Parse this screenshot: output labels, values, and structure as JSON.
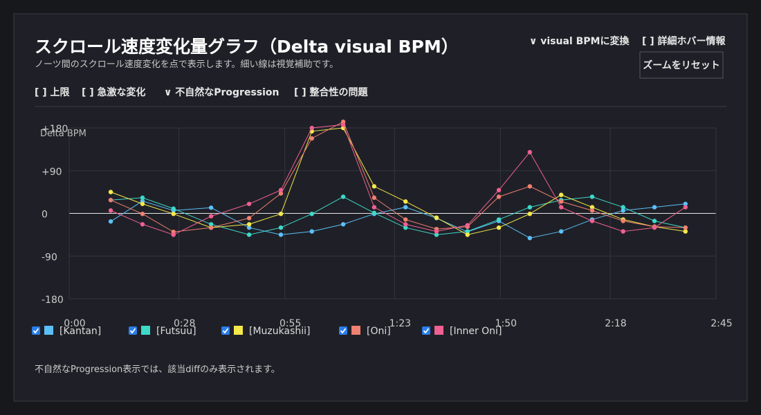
{
  "header": {
    "title": "スクロール速度変化量グラフ（Delta visual BPM）",
    "subtitle": "ノーツ間のスクロール速度変化を点で表示します。細い線は視覚補助です。"
  },
  "options": [
    "∨ visual BPMに変換",
    "[ ] 詳細ホバー情報"
  ],
  "button": "ズームをリセット",
  "filters": [
    "[ ] 上限",
    "[ ] 急激な変化",
    "∨ 不自然なProgression",
    "[ ] 整合性の問題"
  ],
  "footer": "不自然なProgression表示では、該当diffのみ表示されます。",
  "chart_data": {
    "type": "line",
    "y_label": "Delta BPM",
    "x": [
      10.6,
      18.7,
      26.6,
      36.2,
      45.9,
      54,
      61.9,
      69.9,
      77.8,
      85.8,
      93.7,
      101.6,
      109.6,
      117.5,
      125.5,
      133.4,
      141.3,
      149.3,
      157.2
    ],
    "xlim": [
      0,
      165
    ],
    "xticks": [
      {
        "value": 0,
        "label": "0:00"
      },
      {
        "value": 28,
        "label": "0:28"
      },
      {
        "value": 55,
        "label": "0:55"
      },
      {
        "value": 83,
        "label": "1:23"
      },
      {
        "value": 110,
        "label": "1:50"
      },
      {
        "value": 138,
        "label": "2:18"
      },
      {
        "value": 165,
        "label": "2:45"
      }
    ],
    "ylim": [
      -180,
      180
    ],
    "yticks": [
      {
        "value": 180,
        "label": "+180"
      },
      {
        "value": 90,
        "label": "+90"
      },
      0,
      -90,
      -180
    ],
    "grid": true,
    "series": [
      {
        "name": "[Kantan]",
        "color": "#5bc0f8",
        "values": [
          -17,
          26,
          6,
          12,
          -30,
          -45,
          -38,
          -23,
          -1,
          13,
          -10,
          -39,
          -16,
          -52,
          -38,
          -13,
          6,
          13,
          20
        ]
      },
      {
        "name": "[Futsuu]",
        "color": "#3dd9c9",
        "values": [
          28,
          33,
          10,
          -23,
          -45,
          -30,
          -1,
          35,
          1,
          -30,
          -45,
          -38,
          -13,
          13,
          28,
          35,
          13,
          -16,
          -30
        ]
      },
      {
        "name": "[Muzukashii]",
        "color": "#f5e94a",
        "values": [
          45,
          20,
          -1,
          -30,
          -23,
          -1,
          173,
          180,
          57,
          25,
          -9,
          -45,
          -30,
          -1,
          39,
          13,
          -13,
          -28,
          -38
        ]
      },
      {
        "name": "[Oni]",
        "color": "#f08070",
        "values": [
          28,
          -1,
          -39,
          -30,
          -10,
          42,
          158,
          193,
          33,
          -13,
          -33,
          -28,
          35,
          57,
          25,
          6,
          -16,
          -28,
          -30
        ]
      },
      {
        "name": "[Inner Oni]",
        "color": "#f06090",
        "values": [
          6,
          -23,
          -45,
          -6,
          20,
          49,
          180,
          187,
          13,
          -23,
          -38,
          -25,
          49,
          129,
          13,
          -16,
          -38,
          -30,
          13
        ]
      }
    ]
  }
}
